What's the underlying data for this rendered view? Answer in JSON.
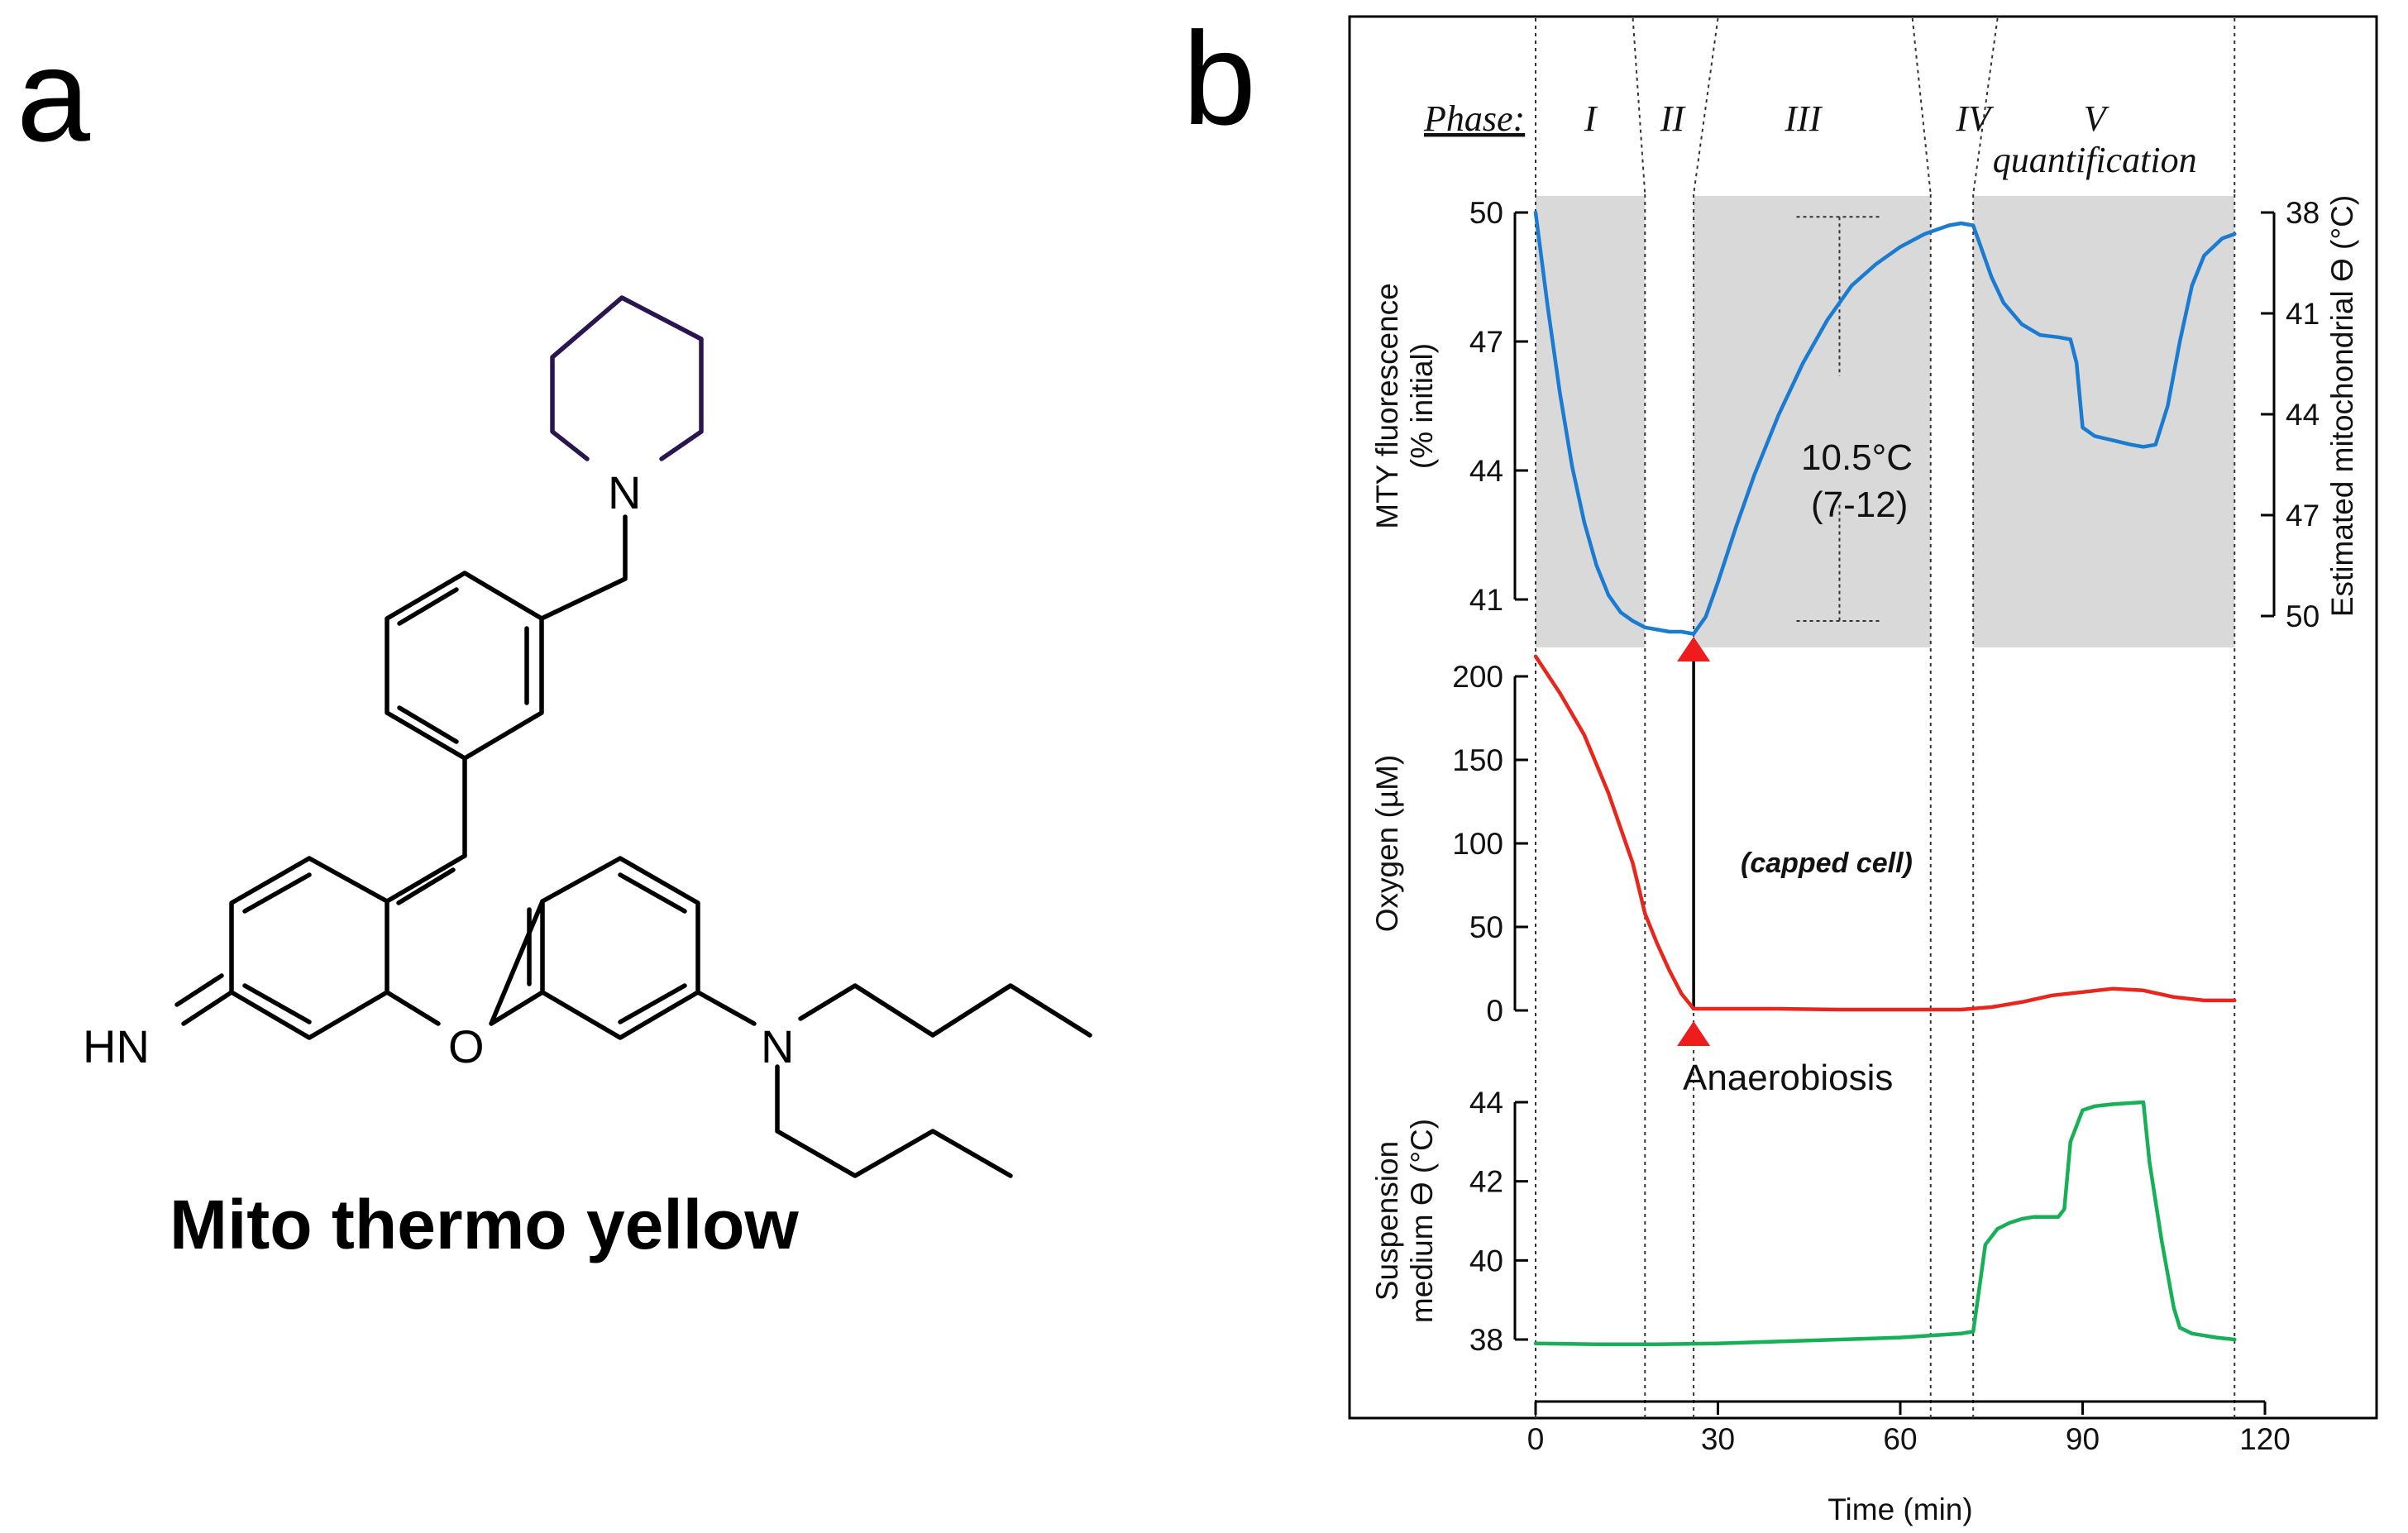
{
  "panel_a": {
    "letter": "a",
    "compound_name": "Mito thermo yellow",
    "atoms": {
      "n_ring": "N",
      "imine": "HN",
      "oxygen": "O",
      "n_amine": "N"
    }
  },
  "panel_b": {
    "letter": "b",
    "phase_label": "Phase:",
    "phases": [
      {
        "name": "I",
        "sub": ""
      },
      {
        "name": "II",
        "sub": ""
      },
      {
        "name": "III",
        "sub": ""
      },
      {
        "name": "IV",
        "sub": ""
      },
      {
        "name": "V",
        "sub": "quantification"
      }
    ],
    "annotations": {
      "delta_temp": "10.5°C",
      "delta_range": "(7-12)",
      "capped_cell": "(capped cell)",
      "anaerobiosis": "Anaerobiosis"
    }
  },
  "chart_data": {
    "type": "line",
    "x_axis": {
      "label": "Time (min)",
      "range": [
        0,
        120
      ],
      "ticks": [
        "0",
        "30",
        "60",
        "90",
        "120"
      ],
      "tick_values": [
        0,
        30,
        60,
        90,
        120
      ]
    },
    "phase_boundaries_min": [
      0,
      18,
      26,
      65,
      72,
      115
    ],
    "colors": {
      "fluorescence": "#1a7bd0",
      "oxygen": "#e8261c",
      "suspension": "#17b058",
      "shade": "#d9d9d9",
      "marker": "#ee1c1c"
    },
    "subplots": [
      {
        "id": "fluorescence",
        "ylabel_lines": [
          "MTY fluorescence",
          "(% initial)"
        ],
        "ylim": [
          41,
          50
        ],
        "ticks": [
          "50",
          "47",
          "44",
          "41"
        ],
        "tick_values": [
          50,
          47,
          44,
          41
        ],
        "right_axis": {
          "label": "Estimated mitochondrial ϴ (°C)",
          "ticks": [
            "38",
            "41",
            "44",
            "47",
            "50"
          ],
          "range": [
            38,
            50
          ]
        },
        "x": [
          0,
          2,
          4,
          6,
          8,
          10,
          12,
          14,
          16,
          18,
          20,
          22,
          24,
          26,
          28,
          30,
          33,
          36,
          40,
          44,
          48,
          52,
          56,
          60,
          64,
          66,
          68,
          70,
          72,
          73,
          75,
          77,
          80,
          83,
          86,
          88,
          89,
          90,
          92,
          95,
          98,
          100,
          102,
          104,
          106,
          108,
          110,
          113,
          115
        ],
        "values": [
          50.0,
          47.8,
          45.8,
          44.1,
          42.8,
          41.8,
          41.1,
          40.7,
          40.5,
          40.35,
          40.3,
          40.25,
          40.25,
          40.2,
          40.6,
          41.4,
          42.7,
          43.9,
          45.3,
          46.5,
          47.5,
          48.3,
          48.8,
          49.2,
          49.5,
          49.6,
          49.7,
          49.75,
          49.7,
          49.3,
          48.5,
          47.9,
          47.4,
          47.15,
          47.1,
          47.05,
          46.5,
          45.0,
          44.8,
          44.7,
          44.6,
          44.55,
          44.6,
          45.5,
          47.0,
          48.3,
          49.0,
          49.4,
          49.5
        ]
      },
      {
        "id": "oxygen",
        "ylabel_lines": [
          "Oxygen  (µM)"
        ],
        "ylim": [
          0,
          200
        ],
        "ticks": [
          "200",
          "150",
          "100",
          "50",
          "0"
        ],
        "tick_values": [
          200,
          150,
          100,
          50,
          0
        ],
        "x": [
          0,
          4,
          8,
          12,
          16,
          18,
          20,
          22,
          24,
          26,
          30,
          40,
          50,
          60,
          70,
          75,
          80,
          85,
          90,
          95,
          100,
          105,
          110,
          115
        ],
        "values": [
          212,
          190,
          165,
          130,
          88,
          58,
          40,
          24,
          10,
          1,
          1,
          1,
          0.5,
          0.5,
          0.5,
          2,
          5,
          9,
          11,
          13,
          12,
          8,
          6,
          6
        ]
      },
      {
        "id": "suspension",
        "ylabel_lines": [
          "Suspension",
          "medium ϴ (°C)"
        ],
        "ylim": [
          38,
          44
        ],
        "ticks": [
          "44",
          "42",
          "40",
          "38"
        ],
        "tick_values": [
          44,
          42,
          40,
          38
        ],
        "x": [
          0,
          10,
          20,
          30,
          40,
          50,
          60,
          70,
          72,
          73,
          74,
          76,
          78,
          80,
          82,
          84,
          85,
          86,
          87,
          88,
          90,
          92,
          95,
          100,
          101,
          103,
          105,
          106,
          108,
          110,
          112,
          115
        ],
        "values": [
          37.9,
          37.88,
          37.88,
          37.9,
          37.95,
          38.0,
          38.05,
          38.15,
          38.2,
          39.3,
          40.4,
          40.8,
          40.95,
          41.05,
          41.1,
          41.1,
          41.1,
          41.1,
          41.3,
          43.0,
          43.8,
          43.9,
          43.95,
          44.0,
          42.5,
          40.5,
          38.8,
          38.3,
          38.15,
          38.1,
          38.05,
          38.0
        ]
      }
    ]
  }
}
